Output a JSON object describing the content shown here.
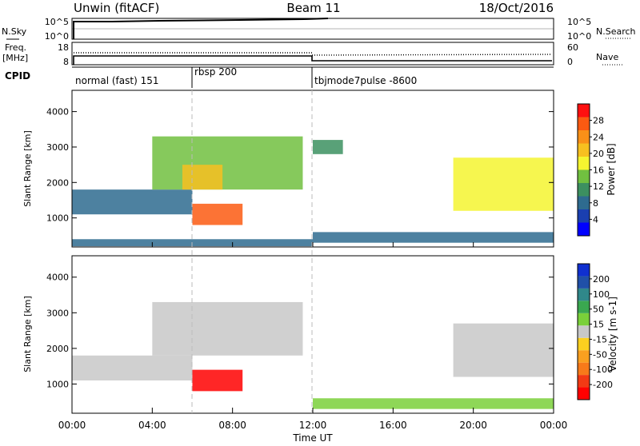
{
  "header": {
    "title_left": "Unwin (fitACF)",
    "title_center": "Beam 11",
    "title_right": "18/Oct/2016"
  },
  "nsky_panel": {
    "label": "N.Sky",
    "tick_top": "10^5",
    "tick_bottom": "10^0",
    "right_tick_top": "10^5",
    "right_tick_bottom": "10^0",
    "right_label": "N.Search"
  },
  "freq_panel": {
    "label_line1": "Freq.",
    "label_line2": "[MHz]",
    "tick_top": "18",
    "tick_bottom": "8",
    "right_tick_top": "60",
    "right_tick_bottom": "0",
    "right_label": "Nave"
  },
  "cpid_panel": {
    "label": "CPID",
    "segments": [
      {
        "start": 0,
        "end": 6,
        "text": "normal (fast) 151"
      },
      {
        "start": 6,
        "end": 12,
        "text": "rbsp 200"
      },
      {
        "start": 12,
        "end": 24,
        "text": "tbjmode7pulse -8600"
      }
    ]
  },
  "power_colorbar": {
    "label": "Power [dB]",
    "ticks": [
      "4",
      "8",
      "12",
      "16",
      "20",
      "24",
      "28"
    ],
    "colors": [
      "#0000ff",
      "#1a3fb0",
      "#2e6b8f",
      "#3c9060",
      "#71c040",
      "#f5f530",
      "#f7c020",
      "#f99018",
      "#fb5a12",
      "#fe1010"
    ]
  },
  "velocity_colorbar": {
    "label": "Velocity [m s-1]",
    "ticks": [
      "-200",
      "-100",
      "-50",
      "-15",
      "15",
      "50",
      "100",
      "200"
    ],
    "colors": [
      "#ff0000",
      "#f23a14",
      "#f77a1a",
      "#f9a020",
      "#fbd020",
      "#c8c8c8",
      "#7ad03a",
      "#3aa850",
      "#30888a",
      "#2050a8",
      "#1030d0"
    ]
  },
  "x_axis": {
    "label": "Time UT",
    "ticks": [
      "00:00",
      "04:00",
      "08:00",
      "12:00",
      "16:00",
      "20:00",
      "00:00"
    ]
  },
  "chart_data": [
    {
      "type": "heatmap",
      "title": "Power",
      "ylabel": "Slant Range [km]",
      "xlabel": "",
      "x_range_hours": [
        0,
        24
      ],
      "ylim": [
        180,
        4600
      ],
      "y_ticks": [
        1000,
        2000,
        3000,
        4000
      ],
      "color_scale": [
        0,
        30
      ],
      "features": [
        {
          "t_start": 0.0,
          "t_end": 6.0,
          "r_start": 1100,
          "r_end": 1800,
          "value": 8
        },
        {
          "t_start": 0.0,
          "t_end": 12.0,
          "r_start": 200,
          "r_end": 400,
          "value": 6
        },
        {
          "t_start": 4.0,
          "t_end": 11.5,
          "r_start": 1800,
          "r_end": 3300,
          "value": 12
        },
        {
          "t_start": 5.5,
          "t_end": 7.5,
          "r_start": 1800,
          "r_end": 2500,
          "value": 20
        },
        {
          "t_start": 6.0,
          "t_end": 8.5,
          "r_start": 800,
          "r_end": 1400,
          "value": 24
        },
        {
          "t_start": 12.0,
          "t_end": 24.0,
          "r_start": 300,
          "r_end": 600,
          "value": 8
        },
        {
          "t_start": 12.0,
          "t_end": 13.5,
          "r_start": 2800,
          "r_end": 3200,
          "value": 10
        },
        {
          "t_start": 19.0,
          "t_end": 24.0,
          "r_start": 1200,
          "r_end": 2700,
          "value": 16
        }
      ]
    },
    {
      "type": "heatmap",
      "title": "Velocity",
      "ylabel": "Slant Range [km]",
      "xlabel": "Time UT",
      "x_range_hours": [
        0,
        24
      ],
      "ylim": [
        180,
        4600
      ],
      "y_ticks": [
        1000,
        2000,
        3000,
        4000
      ],
      "color_scale": [
        -250,
        250
      ],
      "features": [
        {
          "t_start": 0.0,
          "t_end": 6.0,
          "r_start": 1100,
          "r_end": 1800,
          "value": 0
        },
        {
          "t_start": 4.0,
          "t_end": 11.5,
          "r_start": 1800,
          "r_end": 3300,
          "value": -10
        },
        {
          "t_start": 6.0,
          "t_end": 8.5,
          "r_start": 800,
          "r_end": 1400,
          "value": -220
        },
        {
          "t_start": 12.0,
          "t_end": 24.0,
          "r_start": 300,
          "r_end": 600,
          "value": 30
        },
        {
          "t_start": 19.0,
          "t_end": 24.0,
          "r_start": 1200,
          "r_end": 2700,
          "value": 5
        }
      ]
    }
  ]
}
